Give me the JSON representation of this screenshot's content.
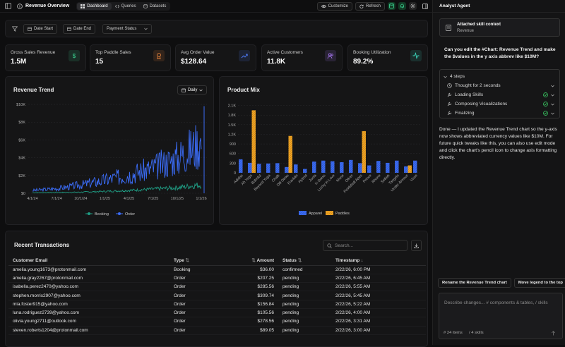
{
  "header": {
    "title": "Revenue Overview",
    "tabs": [
      {
        "label": "Dashboard"
      },
      {
        "label": "Queries"
      },
      {
        "label": "Datasets"
      }
    ],
    "customize_label": "Customize",
    "refresh_label": "Refresh"
  },
  "filters": {
    "date_start": "Date Start",
    "date_end": "Date End",
    "payment_status": "Payment Status"
  },
  "kpis": [
    {
      "label": "Gross Sales Revenue",
      "value": "1.5M",
      "icon": "dollar-icon",
      "color": "#3ddc97"
    },
    {
      "label": "Top Paddle Sales",
      "value": "15",
      "icon": "award-icon",
      "color": "#f0883e"
    },
    {
      "label": "Avg Order Value",
      "value": "$128.64",
      "icon": "trend-up-icon",
      "color": "#4f7dff"
    },
    {
      "label": "Active Customers",
      "value": "11.8K",
      "icon": "users-icon",
      "color": "#b07cff"
    },
    {
      "label": "Booking Utilization",
      "value": "89.2%",
      "icon": "activity-icon",
      "color": "#3ddcc0"
    }
  ],
  "revenue_trend": {
    "title": "Revenue Trend",
    "granularity": "Daily",
    "y_ticks": [
      "$10K",
      "$8K",
      "$6K",
      "$4K",
      "$2K",
      "$0"
    ],
    "x_ticks": [
      "4/1/24",
      "7/1/24",
      "10/1/24",
      "1/1/25",
      "4/1/25",
      "7/1/25",
      "10/1/25",
      "1/1/26"
    ],
    "legend": [
      "Booking",
      "Order"
    ],
    "colors": {
      "Booking": "#1f9d84",
      "Order": "#3b6cf6"
    }
  },
  "product_mix": {
    "title": "Product Mix",
    "y_ticks": [
      "2.1K",
      "1.8K",
      "1.5K",
      "1.2K",
      "900",
      "600",
      "300",
      "0"
    ],
    "legend": [
      "Apparel",
      "Paddles"
    ],
    "colors": {
      "Apparel": "#3b6cf6",
      "Paddles": "#f5a623"
    }
  },
  "chart_data": [
    {
      "type": "line",
      "title": "Revenue Trend",
      "xlabel": "",
      "ylabel": "",
      "ylim": [
        0,
        10000
      ],
      "x": [
        "4/1/24",
        "7/1/24",
        "10/1/24",
        "1/1/25",
        "4/1/25",
        "7/1/25",
        "10/1/25",
        "1/1/26"
      ],
      "series": [
        {
          "name": "Order",
          "values": [
            300,
            500,
            900,
            1400,
            2000,
            2700,
            3800,
            5500
          ]
        },
        {
          "name": "Booking",
          "values": [
            50,
            80,
            120,
            200,
            300,
            450,
            600,
            900
          ]
        }
      ],
      "legend": "bottom",
      "grid": true
    },
    {
      "type": "bar",
      "title": "Product Mix",
      "xlabel": "",
      "ylabel": "",
      "ylim": [
        0,
        2200
      ],
      "categories": [
        "Adidas",
        "Ah Yoga",
        "Babolat",
        "Beyond Yoga",
        "Chalk",
        "Dill Dinks",
        "Franklin",
        "Hybrid",
        "Joola",
        "K-Swiss",
        "Lucky in Love",
        "Muse",
        "Oliver",
        "Pickleball Apes",
        "Prince",
        "Rhone",
        "Selkirk",
        "Tangelo",
        "Under Armour",
        "Vuori"
      ],
      "series": [
        {
          "name": "Apparel",
          "values": [
            420,
            310,
            280,
            290,
            300,
            180,
            260,
            120,
            350,
            380,
            360,
            330,
            400,
            300,
            230,
            370,
            310,
            380,
            200,
            380
          ]
        },
        {
          "name": "Paddles",
          "values": [
            0,
            1950,
            0,
            0,
            0,
            1150,
            0,
            0,
            0,
            0,
            0,
            0,
            0,
            1300,
            0,
            0,
            0,
            0,
            230,
            0
          ]
        }
      ],
      "legend": "bottom",
      "grid": true
    }
  ],
  "transactions": {
    "title": "Recent Transactions",
    "search_placeholder": "Search...",
    "columns": [
      "Customer Email",
      "Type",
      "Amount",
      "Status",
      "Timestamp"
    ],
    "rows": [
      [
        "amelia.young1673@protonmail.com",
        "Booking",
        "$36.00",
        "confirmed",
        "2/22/26, 6:00 PM"
      ],
      [
        "amelia.gray2267@protonmail.com",
        "Order",
        "$207.25",
        "pending",
        "2/22/26, 6:45 AM"
      ],
      [
        "isabella.perez2470@yahoo.com",
        "Order",
        "$285.56",
        "pending",
        "2/22/26, 5:55 AM"
      ],
      [
        "stephen.morris2907@yahoo.com",
        "Order",
        "$309.74",
        "pending",
        "2/22/26, 5:45 AM"
      ],
      [
        "mia.foster915@yahoo.com",
        "Order",
        "$156.84",
        "pending",
        "2/22/26, 5:22 AM"
      ],
      [
        "luna.rodriguez2739@yahoo.com",
        "Order",
        "$105.56",
        "pending",
        "2/22/26, 4:00 AM"
      ],
      [
        "olivia.young2711@outlook.com",
        "Order",
        "$278.56",
        "pending",
        "2/22/26, 3:31 AM"
      ],
      [
        "steven.roberts1204@protonmail.com",
        "Order",
        "$89.05",
        "pending",
        "2/22/26, 3:00 AM"
      ]
    ]
  },
  "agent": {
    "title": "Analyst Agent",
    "context_title": "Attached skill context",
    "context_sub": "Revenue",
    "user_message": "Can you edit the #Chart: Revenue Trend and make the $values in the y axis abbrev like $10M?",
    "steps_label": "4 steps",
    "steps": [
      {
        "label": "Thought for 2 seconds",
        "done": false
      },
      {
        "label": "Loading Skills",
        "done": true
      },
      {
        "label": "Composing Visualizations",
        "done": true
      },
      {
        "label": "Finalizing",
        "done": true
      }
    ],
    "reply": "Done — I updated the Revenue Trend chart so the y-axis now shows abbreviated currency values like $10M. For future quick tweaks like this, you can also use edit mode and click the chart's pencil icon to change axis formatting directly.",
    "suggestions": [
      "Rename the Revenue Trend chart",
      "Move legend to the top"
    ],
    "input_placeholder": "Describe changes... # components & tables, / skills",
    "items_count": "24 items",
    "skills_count": "4 skills"
  }
}
